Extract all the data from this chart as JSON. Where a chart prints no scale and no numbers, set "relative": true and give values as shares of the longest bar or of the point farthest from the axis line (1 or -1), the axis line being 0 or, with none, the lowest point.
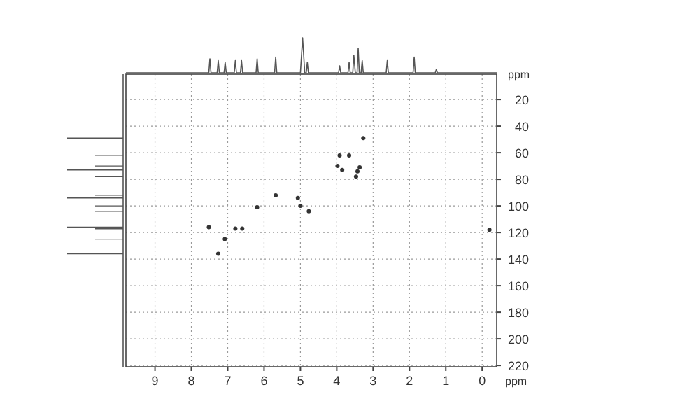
{
  "chart_data": [
    {
      "type": "scatter",
      "xlabel": "ppm",
      "ylabel": "ppm",
      "xlim": [
        9.8,
        -0.4
      ],
      "ylim": [
        221,
        1
      ],
      "xticks": [
        9,
        8,
        7,
        6,
        5,
        4,
        3,
        2,
        1,
        0
      ],
      "yticks": [
        20,
        40,
        60,
        80,
        100,
        120,
        140,
        160,
        180,
        200,
        220
      ],
      "grid": true,
      "marker": "circle",
      "series": [
        {
          "color": "#333333",
          "x": [
            3.27,
            3.92,
            3.66,
            3.98,
            3.85,
            3.37,
            3.43,
            3.47,
            5.68,
            5.07,
            5.0,
            4.77,
            6.19,
            7.52,
            6.79,
            6.6,
            7.08,
            7.26,
            -0.2
          ],
          "values": [
            49,
            62,
            62,
            70,
            73,
            71,
            74,
            78,
            92,
            94,
            100,
            104,
            101,
            116,
            117,
            117,
            125,
            136,
            118
          ]
        }
      ]
    },
    {
      "type": "line",
      "relative": true,
      "xlim": [
        9.8,
        -0.4
      ],
      "line_style": "solid",
      "series": [
        {
          "color": "#555555",
          "x": [
            9.8,
            7.52,
            7.49,
            7.46,
            7.29,
            7.26,
            7.23,
            7.1,
            7.07,
            7.04,
            6.82,
            6.79,
            6.76,
            6.65,
            6.62,
            6.59,
            6.22,
            6.19,
            6.16,
            5.71,
            5.68,
            5.65,
            5.0,
            4.94,
            4.88,
            4.84,
            4.81,
            4.78,
            3.95,
            3.92,
            3.89,
            3.69,
            3.66,
            3.63,
            3.56,
            3.53,
            3.49,
            3.44,
            3.41,
            3.38,
            3.33,
            3.3,
            3.27,
            2.64,
            2.61,
            2.58,
            1.9,
            1.87,
            1.84,
            1.29,
            1.26,
            1.23,
            -0.4
          ],
          "values": [
            0,
            0,
            0.4,
            0,
            0,
            0.35,
            0,
            0,
            0.3,
            0,
            0,
            0.35,
            0,
            0,
            0.35,
            0,
            0,
            0.4,
            0,
            0,
            0.45,
            0,
            0,
            1,
            0,
            0,
            0.3,
            0,
            0,
            0.2,
            0,
            0,
            0.3,
            0,
            0,
            0.5,
            0,
            0,
            0.7,
            0,
            0,
            0.35,
            0,
            0,
            0.35,
            0,
            0,
            0.45,
            0,
            0,
            0.1,
            0,
            0
          ]
        }
      ]
    }
  ]
}
